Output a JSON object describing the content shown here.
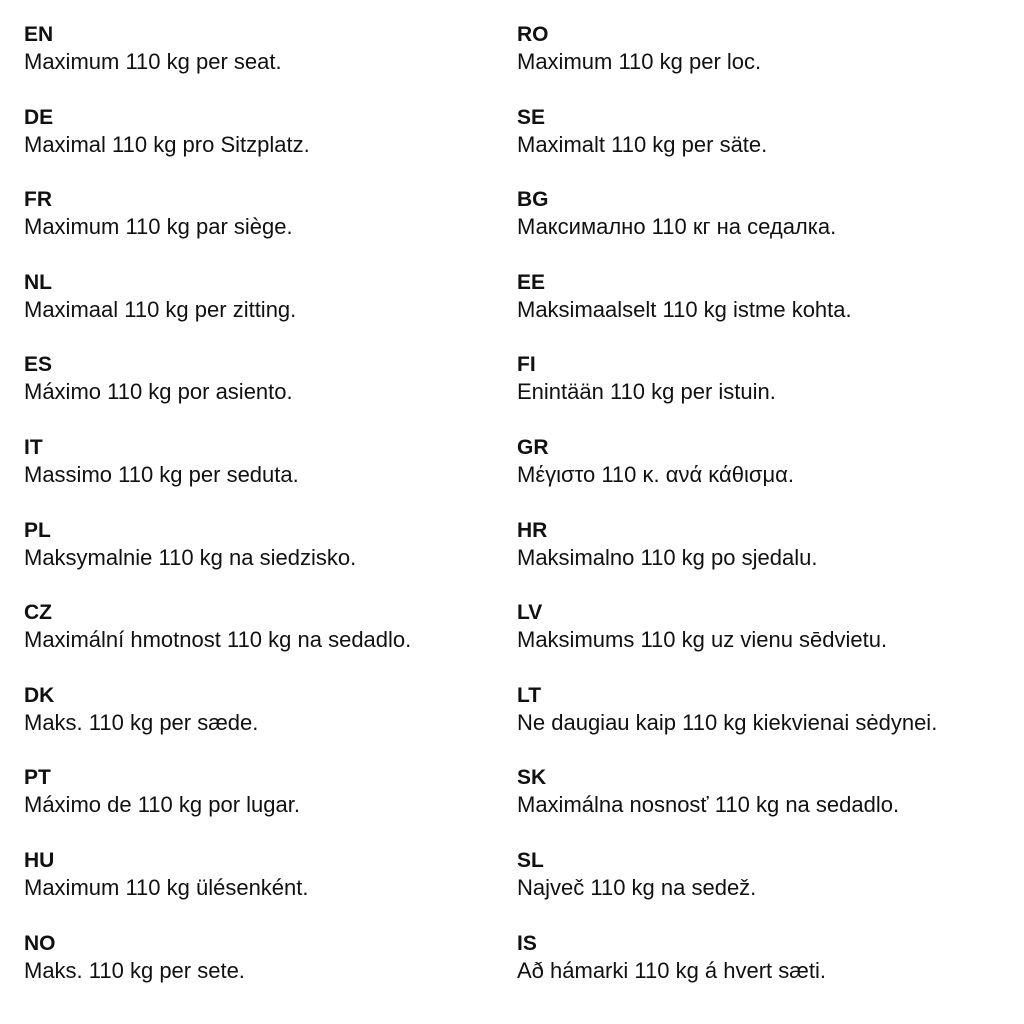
{
  "left_column": [
    {
      "code": "EN",
      "text": "Maximum 110 kg per seat."
    },
    {
      "code": "DE",
      "text": "Maximal 110 kg pro Sitzplatz."
    },
    {
      "code": "FR",
      "text": "Maximum 110 kg par siège."
    },
    {
      "code": "NL",
      "text": "Maximaal 110 kg per zitting."
    },
    {
      "code": "ES",
      "text": "Máximo 110 kg por asiento."
    },
    {
      "code": "IT",
      "text": "Massimo 110 kg per seduta."
    },
    {
      "code": "PL",
      "text": "Maksymalnie 110 kg na siedzisko."
    },
    {
      "code": "CZ",
      "text": "Maximální hmotnost 110 kg na sedadlo."
    },
    {
      "code": "DK",
      "text": "Maks. 110 kg per sæde."
    },
    {
      "code": "PT",
      "text": "Máximo de 110 kg por lugar."
    },
    {
      "code": "HU",
      "text": "Maximum 110 kg ülésenként."
    },
    {
      "code": "NO",
      "text": "Maks. 110 kg per sete."
    }
  ],
  "right_column": [
    {
      "code": "RO",
      "text": "Maximum 110 kg per loc."
    },
    {
      "code": "SE",
      "text": "Maximalt 110 kg per säte."
    },
    {
      "code": "BG",
      "text": "Максимално 110 кг на седалка."
    },
    {
      "code": "EE",
      "text": "Maksimaalselt 110 kg istme kohta."
    },
    {
      "code": "FI",
      "text": "Enintään 110 kg per istuin."
    },
    {
      "code": "GR",
      "text": "Μέγιστο 110 κ. ανά κάθισμα."
    },
    {
      "code": "HR",
      "text": "Maksimalno 110 kg po sjedalu."
    },
    {
      "code": "LV",
      "text": "Maksimums 110 kg uz vienu sēdvietu."
    },
    {
      "code": "LT",
      "text": "Ne daugiau kaip 110 kg kiekvienai sėdynei."
    },
    {
      "code": "SK",
      "text": "Maximálna nosnosť 110 kg na sedadlo."
    },
    {
      "code": "SL",
      "text": "Največ 110 kg na sedež."
    },
    {
      "code": "IS",
      "text": "Að hámarki 110 kg á hvert sæti."
    }
  ]
}
